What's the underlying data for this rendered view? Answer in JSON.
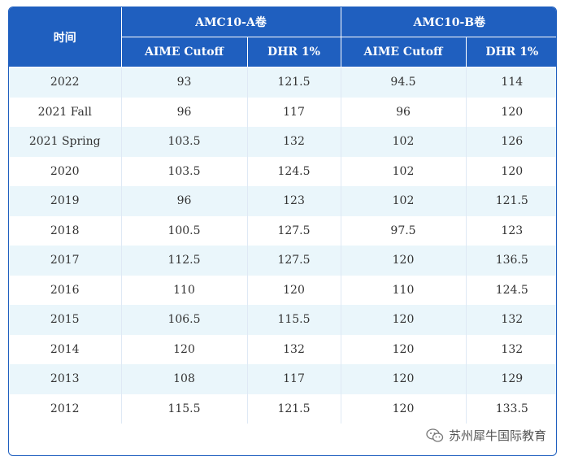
{
  "table": {
    "header": {
      "time": "时间",
      "group_a": "AMC10-A卷",
      "group_b": "AMC10-B卷",
      "aime_cutoff": "AIME Cutoff",
      "dhr": "DHR 1%"
    },
    "rows": [
      [
        "2022",
        "93",
        "121.5",
        "94.5",
        "114"
      ],
      [
        "2021 Fall",
        "96",
        "117",
        "96",
        "120"
      ],
      [
        "2021 Spring",
        "103.5",
        "132",
        "102",
        "126"
      ],
      [
        "2020",
        "103.5",
        "124.5",
        "102",
        "120"
      ],
      [
        "2019",
        "96",
        "123",
        "102",
        "121.5"
      ],
      [
        "2018",
        "100.5",
        "127.5",
        "97.5",
        "123"
      ],
      [
        "2017",
        "112.5",
        "127.5",
        "120",
        "136.5"
      ],
      [
        "2016",
        "110",
        "120",
        "110",
        "124.5"
      ],
      [
        "2015",
        "106.5",
        "115.5",
        "120",
        "132"
      ],
      [
        "2014",
        "120",
        "132",
        "120",
        "132"
      ],
      [
        "2013",
        "108",
        "117",
        "120",
        "129"
      ],
      [
        "2012",
        "115.5",
        "121.5",
        "120",
        "133.5"
      ]
    ]
  },
  "watermark": {
    "text": "苏州犀牛国际教育",
    "icon": "wechat-icon"
  },
  "colors": {
    "header_bg": "#1f5fbf",
    "stripe": "#eaf6fb"
  }
}
